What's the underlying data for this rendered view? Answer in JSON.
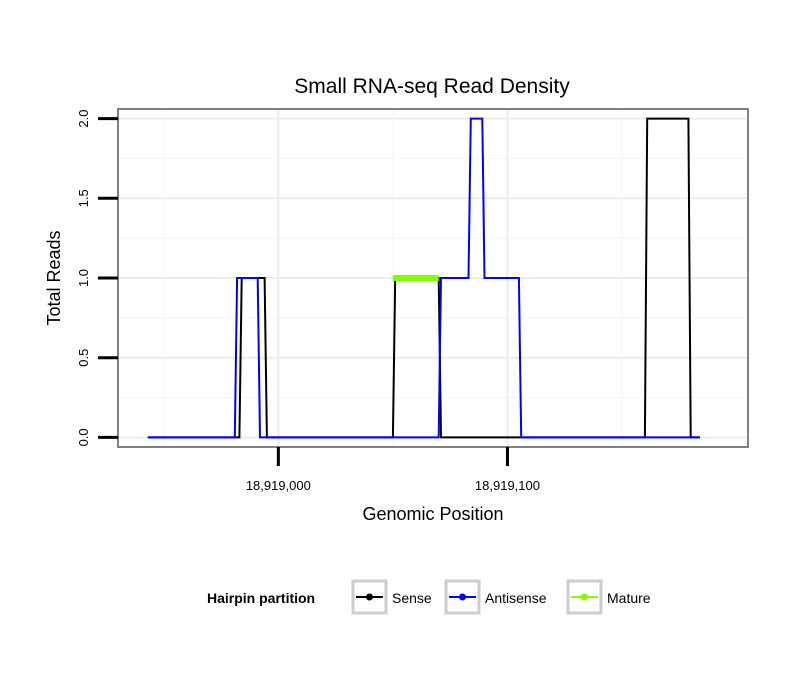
{
  "chart_data": {
    "type": "line",
    "title": "Small RNA-seq Read Density",
    "xlabel": "Genomic Position",
    "ylabel": "Total Reads",
    "xlim": [
      18918930,
      18919205
    ],
    "ylim": [
      -0.06,
      2.06
    ],
    "x_ticks": [
      18919000,
      18919100
    ],
    "x_tick_labels": [
      "18,919,000",
      "18,919,100"
    ],
    "y_ticks": [
      0,
      0.5,
      1,
      1.5,
      2
    ],
    "y_tick_labels": [
      "0.0",
      "0.5",
      "1.0",
      "1.5",
      "2.0"
    ],
    "grid": true,
    "legend": {
      "title": "Hairpin partition",
      "position": "bottom",
      "entries": [
        "Sense",
        "Antisense",
        "Mature"
      ]
    },
    "series": [
      {
        "name": "Sense",
        "color": "#000000",
        "x": [
          18918943,
          18918983,
          18918984,
          18918994,
          18918995,
          18919050,
          18919051,
          18919070,
          18919071,
          18919160,
          18919161,
          18919179,
          18919180,
          18919184
        ],
        "values": [
          0,
          0,
          1,
          1,
          0,
          0,
          1,
          1,
          0,
          0,
          2,
          2,
          0,
          0
        ]
      },
      {
        "name": "Antisense",
        "color": "#0000ff",
        "x": [
          18918943,
          18918981,
          18918982,
          18918991,
          18918992,
          18919070,
          18919071,
          18919083,
          18919084,
          18919089,
          18919090,
          18919105,
          18919106,
          18919184
        ],
        "values": [
          0,
          0,
          1,
          1,
          0,
          0,
          1,
          1,
          2,
          2,
          1,
          1,
          0,
          0
        ]
      },
      {
        "name": "Mature",
        "color": "#7fff00",
        "x": [
          18919050,
          18919070
        ],
        "values": [
          1,
          1
        ]
      }
    ]
  }
}
